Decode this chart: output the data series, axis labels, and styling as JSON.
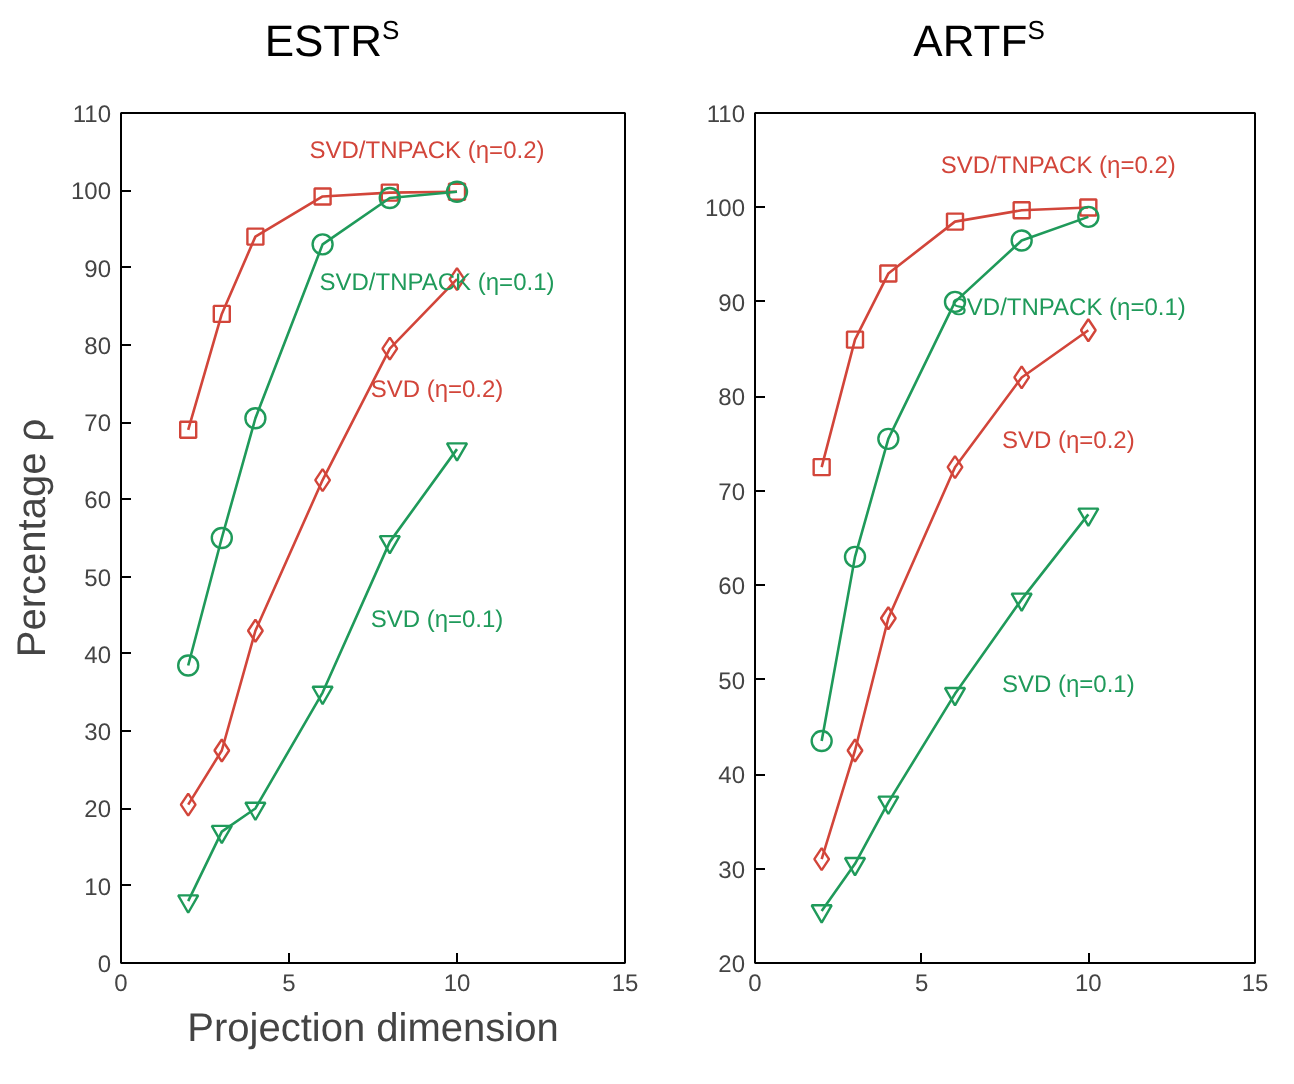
{
  "chart_data": [
    {
      "type": "line",
      "title": "ESTR$^{S}$",
      "xlabel": "Projection dimension",
      "ylabel": "Percentage ρ",
      "x": [
        2,
        3,
        4,
        6,
        8,
        10
      ],
      "xlim": [
        0,
        15
      ],
      "xticks": [
        0,
        5,
        10,
        15
      ],
      "ylim": [
        0,
        110
      ],
      "yticks": [
        0,
        10,
        20,
        30,
        40,
        50,
        60,
        70,
        80,
        90,
        100,
        110
      ],
      "grid": false,
      "line_style": "solid",
      "series": [
        {
          "name": "SVD/TNPACK (η=0.2)",
          "color": "#d2453a",
          "marker": "square",
          "values": [
            69,
            84,
            94,
            99.2,
            99.7,
            99.8
          ]
        },
        {
          "name": "SVD/TNPACK (η=0.1)",
          "color": "#1f9a5a",
          "marker": "circle",
          "values": [
            38.5,
            55,
            70.5,
            93,
            99,
            99.8
          ]
        },
        {
          "name": "SVD (η=0.2)",
          "color": "#d2453a",
          "marker": "diamond",
          "values": [
            20.5,
            27.5,
            43,
            62.5,
            79.5,
            88.5
          ]
        },
        {
          "name": "SVD (η=0.1)",
          "color": "#1f9a5a",
          "marker": "triangle",
          "values": [
            8,
            17,
            20,
            35,
            54.5,
            66.5
          ]
        }
      ]
    },
    {
      "type": "line",
      "title": "ARTF$^{S}$",
      "x": [
        2,
        3,
        4,
        6,
        8,
        10
      ],
      "xlim": [
        0,
        15
      ],
      "xticks": [
        0,
        5,
        10,
        15
      ],
      "ylim": [
        20,
        110
      ],
      "yticks": [
        20,
        30,
        40,
        50,
        60,
        70,
        80,
        90,
        100,
        110
      ],
      "grid": false,
      "line_style": "solid",
      "series": [
        {
          "name": "SVD/TNPACK (η=0.2)",
          "color": "#d2453a",
          "marker": "square",
          "values": [
            72.5,
            86,
            93,
            98.5,
            99.7,
            100
          ]
        },
        {
          "name": "SVD/TNPACK (η=0.1)",
          "color": "#1f9a5a",
          "marker": "circle",
          "values": [
            43.5,
            63,
            75.5,
            90,
            96.5,
            99
          ]
        },
        {
          "name": "SVD (η=0.2)",
          "color": "#d2453a",
          "marker": "diamond",
          "values": [
            31,
            42.5,
            56.5,
            72.5,
            82,
            87
          ]
        },
        {
          "name": "SVD (η=0.1)",
          "color": "#1f9a5a",
          "marker": "triangle",
          "values": [
            25.5,
            30.5,
            37,
            48.5,
            58.5,
            67.5
          ]
        }
      ]
    }
  ]
}
